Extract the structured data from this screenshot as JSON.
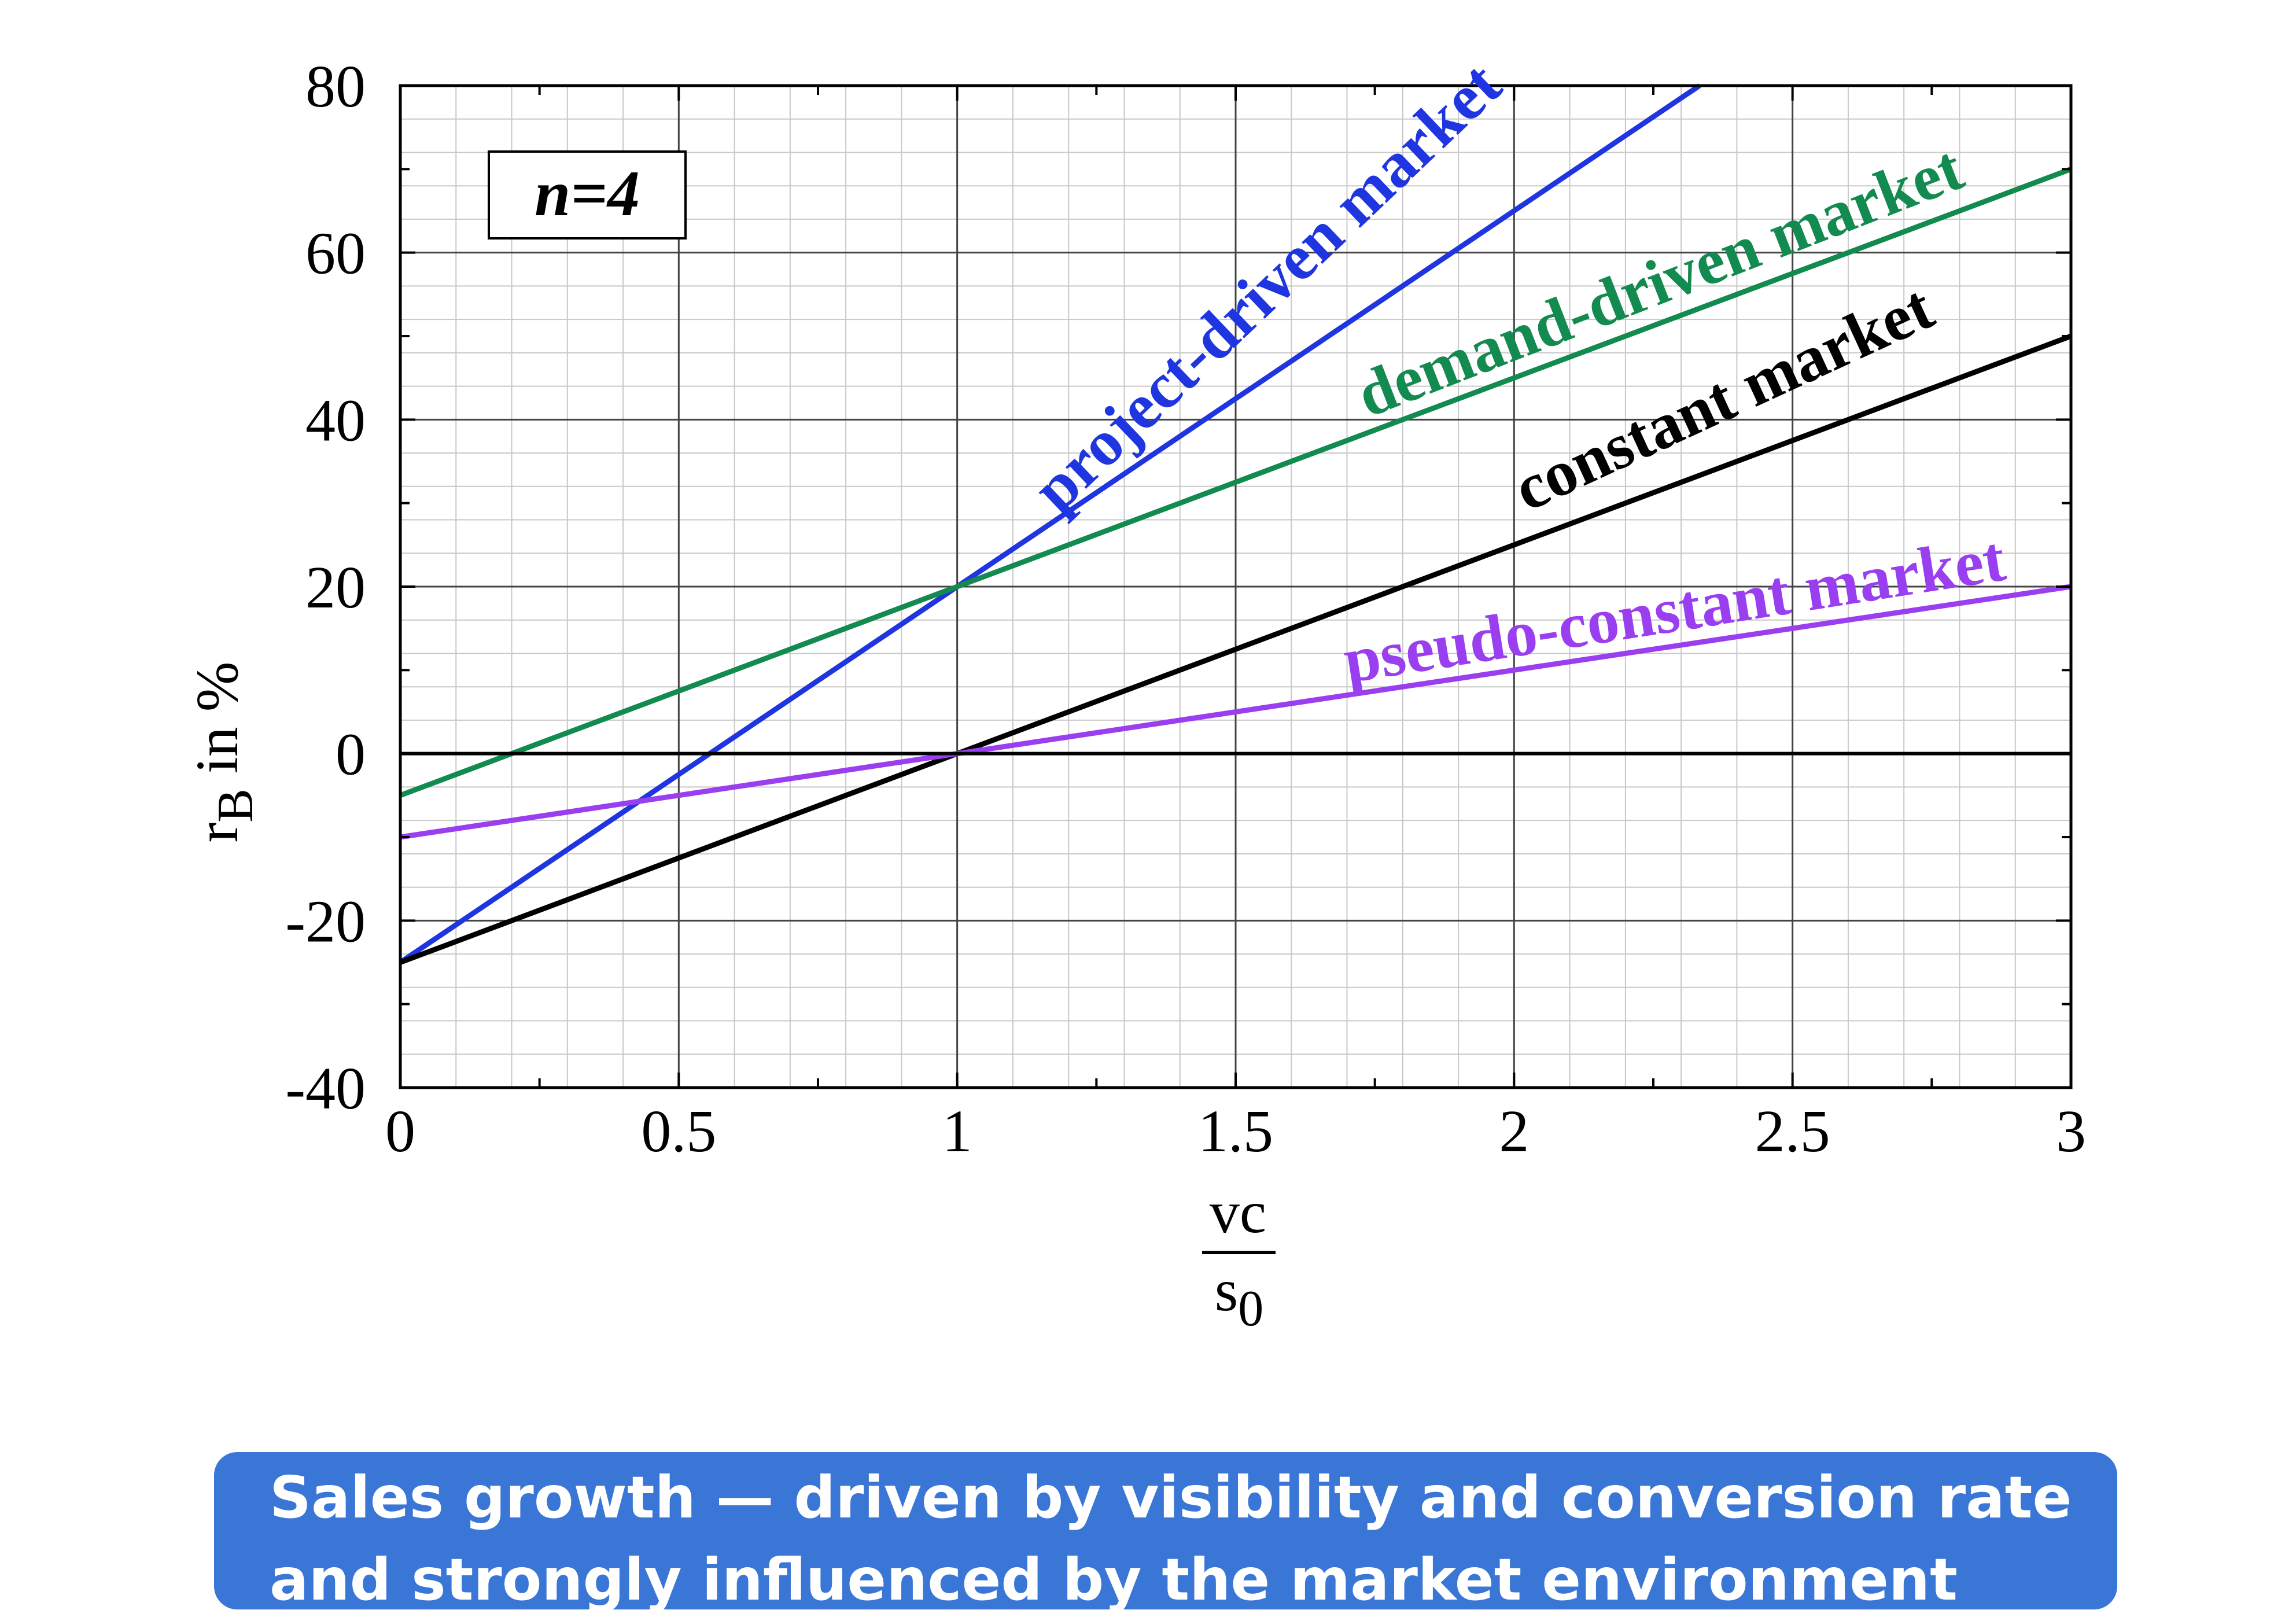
{
  "chart_data": {
    "type": "line",
    "xlabel": {
      "numerator": "vc",
      "denominator": "s",
      "denominator_subscript": "0"
    },
    "ylabel": {
      "base": "r",
      "subscript": "B",
      "suffix": " in %"
    },
    "xlim": [
      0,
      3
    ],
    "ylim": [
      -40,
      80
    ],
    "x_ticks": [
      "0",
      "0.5",
      "1",
      "1.5",
      "2",
      "2.5",
      "3"
    ],
    "y_ticks": [
      "-40",
      "-20",
      "0",
      "20",
      "40",
      "60",
      "80"
    ],
    "grid": true,
    "annotation": "n=4",
    "series": [
      {
        "name": "project-driven market",
        "color": "#1f35e0",
        "x": [
          0,
          1,
          2.333
        ],
        "y": [
          -25,
          20,
          80
        ]
      },
      {
        "name": "demand-driven market",
        "color": "#138a4f",
        "x": [
          0,
          1,
          3
        ],
        "y": [
          -5,
          20,
          70
        ]
      },
      {
        "name": "constant market",
        "color": "#000000",
        "x": [
          0,
          1,
          3
        ],
        "y": [
          -25,
          0,
          50
        ]
      },
      {
        "name": "pseudo-constant market",
        "color": "#9a3ff0",
        "x": [
          0,
          1,
          3
        ],
        "y": [
          -10,
          0,
          20
        ]
      }
    ]
  },
  "caption": {
    "line1": "Sales growth — driven by visibility and conversion rate",
    "line2": "and strongly influenced by the market environment"
  }
}
